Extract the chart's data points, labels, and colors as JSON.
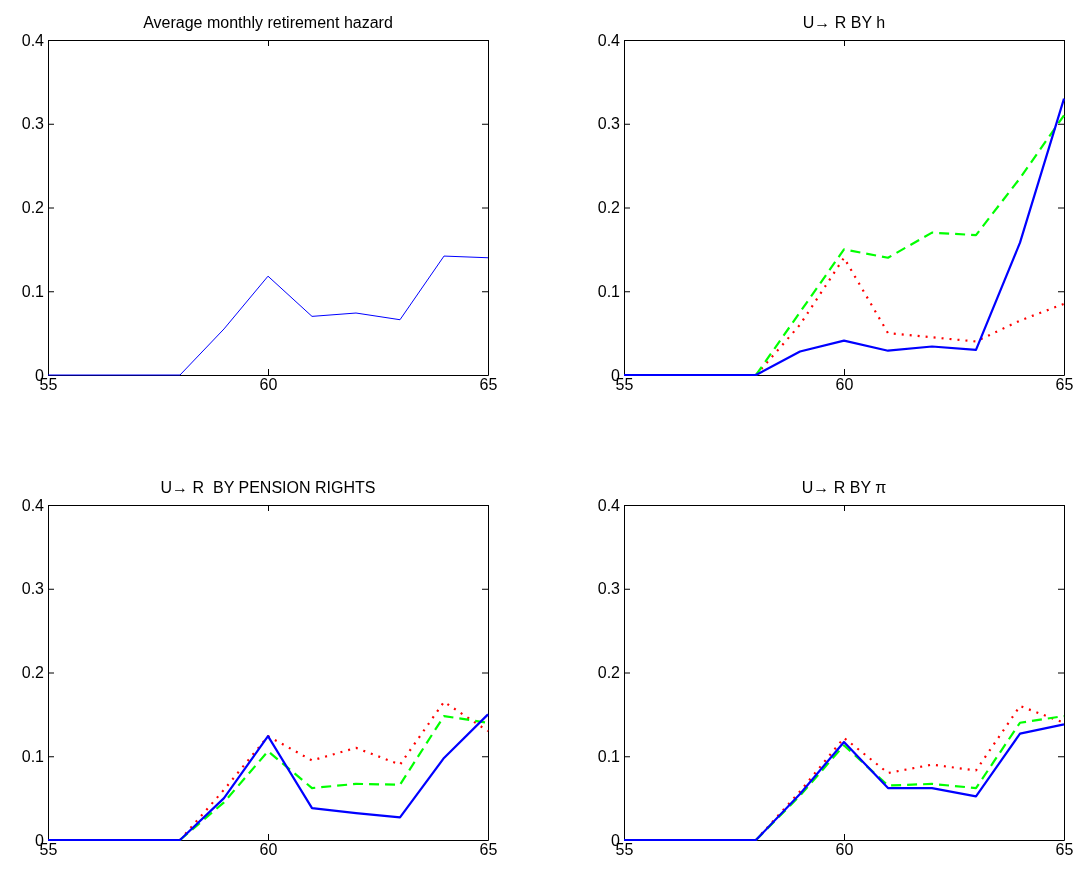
{
  "chart_data": [
    {
      "type": "line",
      "title": "Average monthly retirement hazard",
      "x": [
        55,
        56,
        57,
        58,
        59,
        60,
        61,
        62,
        63,
        64,
        65
      ],
      "xlim": [
        55,
        65
      ],
      "xticks": [
        55,
        60,
        65
      ],
      "ylim": [
        0,
        0.4
      ],
      "yticks": [
        0,
        0.1,
        0.2,
        0.3,
        0.4
      ],
      "grid": false,
      "marker": "none",
      "series": [
        {
          "color": "#0000ff",
          "line_style": "solid",
          "values": [
            0,
            0,
            0,
            0,
            0.055,
            0.118,
            0.07,
            0.074,
            0.066,
            0.142,
            0.14
          ]
        }
      ]
    },
    {
      "type": "line",
      "title": "U→ R BY h",
      "x": [
        55,
        56,
        57,
        58,
        59,
        60,
        61,
        62,
        63,
        64,
        65
      ],
      "xlim": [
        55,
        65
      ],
      "xticks": [
        55,
        60,
        65
      ],
      "ylim": [
        0,
        0.4
      ],
      "yticks": [
        0,
        0.1,
        0.2,
        0.3,
        0.4
      ],
      "grid": false,
      "marker": "none",
      "series": [
        {
          "color": "#ff0000",
          "line_style": "dotted",
          "values": [
            null,
            null,
            null,
            0,
            0.06,
            0.14,
            0.05,
            0.045,
            0.04,
            0.065,
            0.085
          ]
        },
        {
          "color": "#00ff00",
          "line_style": "dashed",
          "values": [
            null,
            null,
            null,
            0,
            0.075,
            0.15,
            0.14,
            0.17,
            0.167,
            0.235,
            0.31
          ]
        },
        {
          "color": "#0000ff",
          "line_style": "solid",
          "values": [
            0,
            0,
            0,
            0,
            0.028,
            0.041,
            0.029,
            0.034,
            0.03,
            0.158,
            0.33
          ]
        }
      ]
    },
    {
      "type": "line",
      "title": "U→ R  BY PENSION RIGHTS",
      "x": [
        55,
        56,
        57,
        58,
        59,
        60,
        61,
        62,
        63,
        64,
        65
      ],
      "xlim": [
        55,
        65
      ],
      "xticks": [
        55,
        60,
        65
      ],
      "ylim": [
        0,
        0.4
      ],
      "yticks": [
        0,
        0.1,
        0.2,
        0.3,
        0.4
      ],
      "grid": false,
      "marker": "none",
      "series": [
        {
          "color": "#ff0000",
          "line_style": "dotted",
          "values": [
            null,
            null,
            null,
            0,
            0.06,
            0.124,
            0.095,
            0.11,
            0.09,
            0.165,
            0.13
          ]
        },
        {
          "color": "#00ff00",
          "line_style": "dashed",
          "values": [
            null,
            null,
            null,
            0,
            0.045,
            0.106,
            0.062,
            0.067,
            0.066,
            0.148,
            0.14
          ]
        },
        {
          "color": "#0000ff",
          "line_style": "solid",
          "values": [
            0,
            0,
            0,
            0,
            0.05,
            0.124,
            0.038,
            0.032,
            0.027,
            0.098,
            0.15
          ]
        }
      ]
    },
    {
      "type": "line",
      "title": "U→ R BY π",
      "x": [
        55,
        56,
        57,
        58,
        59,
        60,
        61,
        62,
        63,
        64,
        65
      ],
      "xlim": [
        55,
        65
      ],
      "xticks": [
        55,
        60,
        65
      ],
      "ylim": [
        0,
        0.4
      ],
      "yticks": [
        0,
        0.1,
        0.2,
        0.3,
        0.4
      ],
      "grid": false,
      "marker": "none",
      "series": [
        {
          "color": "#ff0000",
          "line_style": "dotted",
          "values": [
            null,
            null,
            null,
            0,
            0.058,
            0.122,
            0.08,
            0.09,
            0.083,
            0.16,
            0.14
          ]
        },
        {
          "color": "#00ff00",
          "line_style": "dashed",
          "values": [
            null,
            null,
            null,
            0,
            0.053,
            0.113,
            0.065,
            0.067,
            0.062,
            0.14,
            0.148
          ]
        },
        {
          "color": "#0000ff",
          "line_style": "solid",
          "values": [
            0,
            0,
            0,
            0,
            0.055,
            0.117,
            0.062,
            0.062,
            0.052,
            0.127,
            0.138
          ]
        }
      ]
    }
  ]
}
